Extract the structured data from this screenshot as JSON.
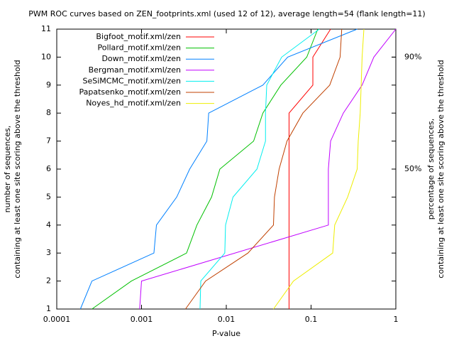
{
  "chart_data": {
    "type": "line",
    "title": "PWM ROC curves based on ZEN_footprints.xml (used 12 of 12), average length=54 (flank length=11)",
    "xlabel": "P-value",
    "ylabel": [
      "number of sequences,",
      "containing at least one site scoring above the threshold"
    ],
    "y2label": [
      "percentage of sequences,",
      "containing at least one site scoring above the threshold"
    ],
    "xscale": "log",
    "xlim": [
      0.0001,
      1
    ],
    "xticks": [
      0.0001,
      0.001,
      0.01,
      0.1,
      1
    ],
    "ylim": [
      1,
      11
    ],
    "yticks": [
      1,
      2,
      3,
      4,
      5,
      6,
      7,
      8,
      9,
      10,
      11
    ],
    "y2lim": [
      0,
      100
    ],
    "y2ticks": [
      {
        "value": 90,
        "label": "90%"
      },
      {
        "value": 50,
        "label": "50%"
      }
    ],
    "legend": "top-left",
    "series": [
      {
        "name": "Bigfoot_motif.xml/zen",
        "color": "#ff0000",
        "x": [
          0.055,
          0.055,
          0.055,
          0.055,
          0.055,
          0.055,
          0.055,
          0.055,
          0.105,
          0.105,
          0.17
        ],
        "values": [
          1,
          2,
          3,
          4,
          5,
          6,
          7,
          8,
          9,
          10,
          11
        ]
      },
      {
        "name": "Pollard_motif.xml/zen",
        "color": "#00c000",
        "x": [
          0.00026,
          0.00076,
          0.0034,
          0.0045,
          0.0067,
          0.0084,
          0.021,
          0.027,
          0.044,
          0.089,
          0.12
        ],
        "values": [
          1,
          2,
          3,
          4,
          5,
          6,
          7,
          8,
          9,
          10,
          11
        ]
      },
      {
        "name": "Down_motif.xml/zen",
        "color": "#0080ff",
        "x": [
          0.00019,
          0.00026,
          0.0014,
          0.0015,
          0.0026,
          0.0037,
          0.0059,
          0.0062,
          0.027,
          0.053,
          0.35
        ],
        "values": [
          1,
          2,
          3,
          4,
          5,
          6,
          7,
          8,
          9,
          10,
          11
        ]
      },
      {
        "name": "Bergman_motif.xml/zen",
        "color": "#c000ff",
        "x": [
          0.00095,
          0.001,
          0.16,
          0.16,
          0.16,
          0.17,
          0.24,
          0.4,
          0.55,
          1
        ],
        "values": [
          1,
          2,
          4,
          5,
          6,
          7,
          8,
          9,
          10,
          11
        ]
      },
      {
        "name": "SeSiMCMC_motif.xml/zen",
        "color": "#00eeee",
        "x": [
          0.0049,
          0.005,
          0.0096,
          0.0098,
          0.012,
          0.023,
          0.029,
          0.029,
          0.03,
          0.045,
          0.125
        ],
        "values": [
          1,
          2,
          3,
          4,
          5,
          6,
          7,
          8,
          9,
          10,
          11
        ]
      },
      {
        "name": "Papatsenko_motif.xml/zen",
        "color": "#c04000",
        "x": [
          0.0033,
          0.0057,
          0.018,
          0.036,
          0.037,
          0.042,
          0.052,
          0.08,
          0.166,
          0.22,
          0.23
        ],
        "values": [
          1,
          2,
          3,
          4,
          5,
          6,
          7,
          8,
          9,
          10,
          11
        ]
      },
      {
        "name": "Noyes_hd_motif.xml/zen",
        "color": "#eeee00",
        "x": [
          0.036,
          0.062,
          0.18,
          0.19,
          0.27,
          0.35,
          0.36,
          0.38,
          0.39,
          0.4,
          0.42
        ],
        "values": [
          1,
          2,
          3,
          4,
          5,
          6,
          7,
          8,
          9,
          10,
          11
        ]
      }
    ]
  }
}
